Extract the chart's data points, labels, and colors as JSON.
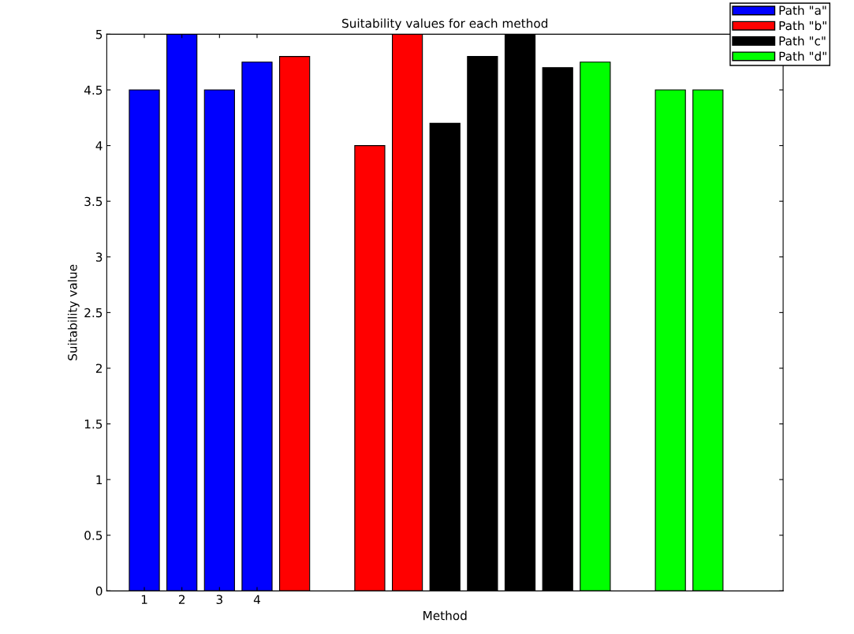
{
  "chart_data": {
    "type": "bar",
    "title": "Suitability values for each method",
    "xlabel": "Method",
    "ylabel": "Suitability value",
    "series": [
      {
        "name": "Path \"a\"",
        "color": "#0000ff",
        "x": [
          1,
          2,
          3,
          4
        ],
        "values": [
          4.5,
          5,
          4.5,
          4.75
        ]
      },
      {
        "name": "Path \"b\"",
        "color": "#ff0000",
        "x": [
          5,
          6,
          7,
          8
        ],
        "values": [
          4.8,
          null,
          4,
          5
        ]
      },
      {
        "name": "Path \"c\"",
        "color": "#000000",
        "x": [
          9,
          10,
          11,
          12
        ],
        "values": [
          4.2,
          4.8,
          5,
          4.7
        ]
      },
      {
        "name": "Path \"d\"",
        "color": "#00ff00",
        "x": [
          13,
          14,
          15,
          16
        ],
        "values": [
          4.75,
          null,
          4.5,
          4.5
        ]
      }
    ],
    "xlim": [
      0,
      18
    ],
    "xticks": [
      1,
      2,
      3,
      4
    ],
    "ylim": [
      0,
      5
    ],
    "yticks": [
      0,
      0.5,
      1,
      1.5,
      2,
      2.5,
      3,
      3.5,
      4,
      4.5,
      5
    ],
    "grid": false,
    "legend": "top right"
  }
}
